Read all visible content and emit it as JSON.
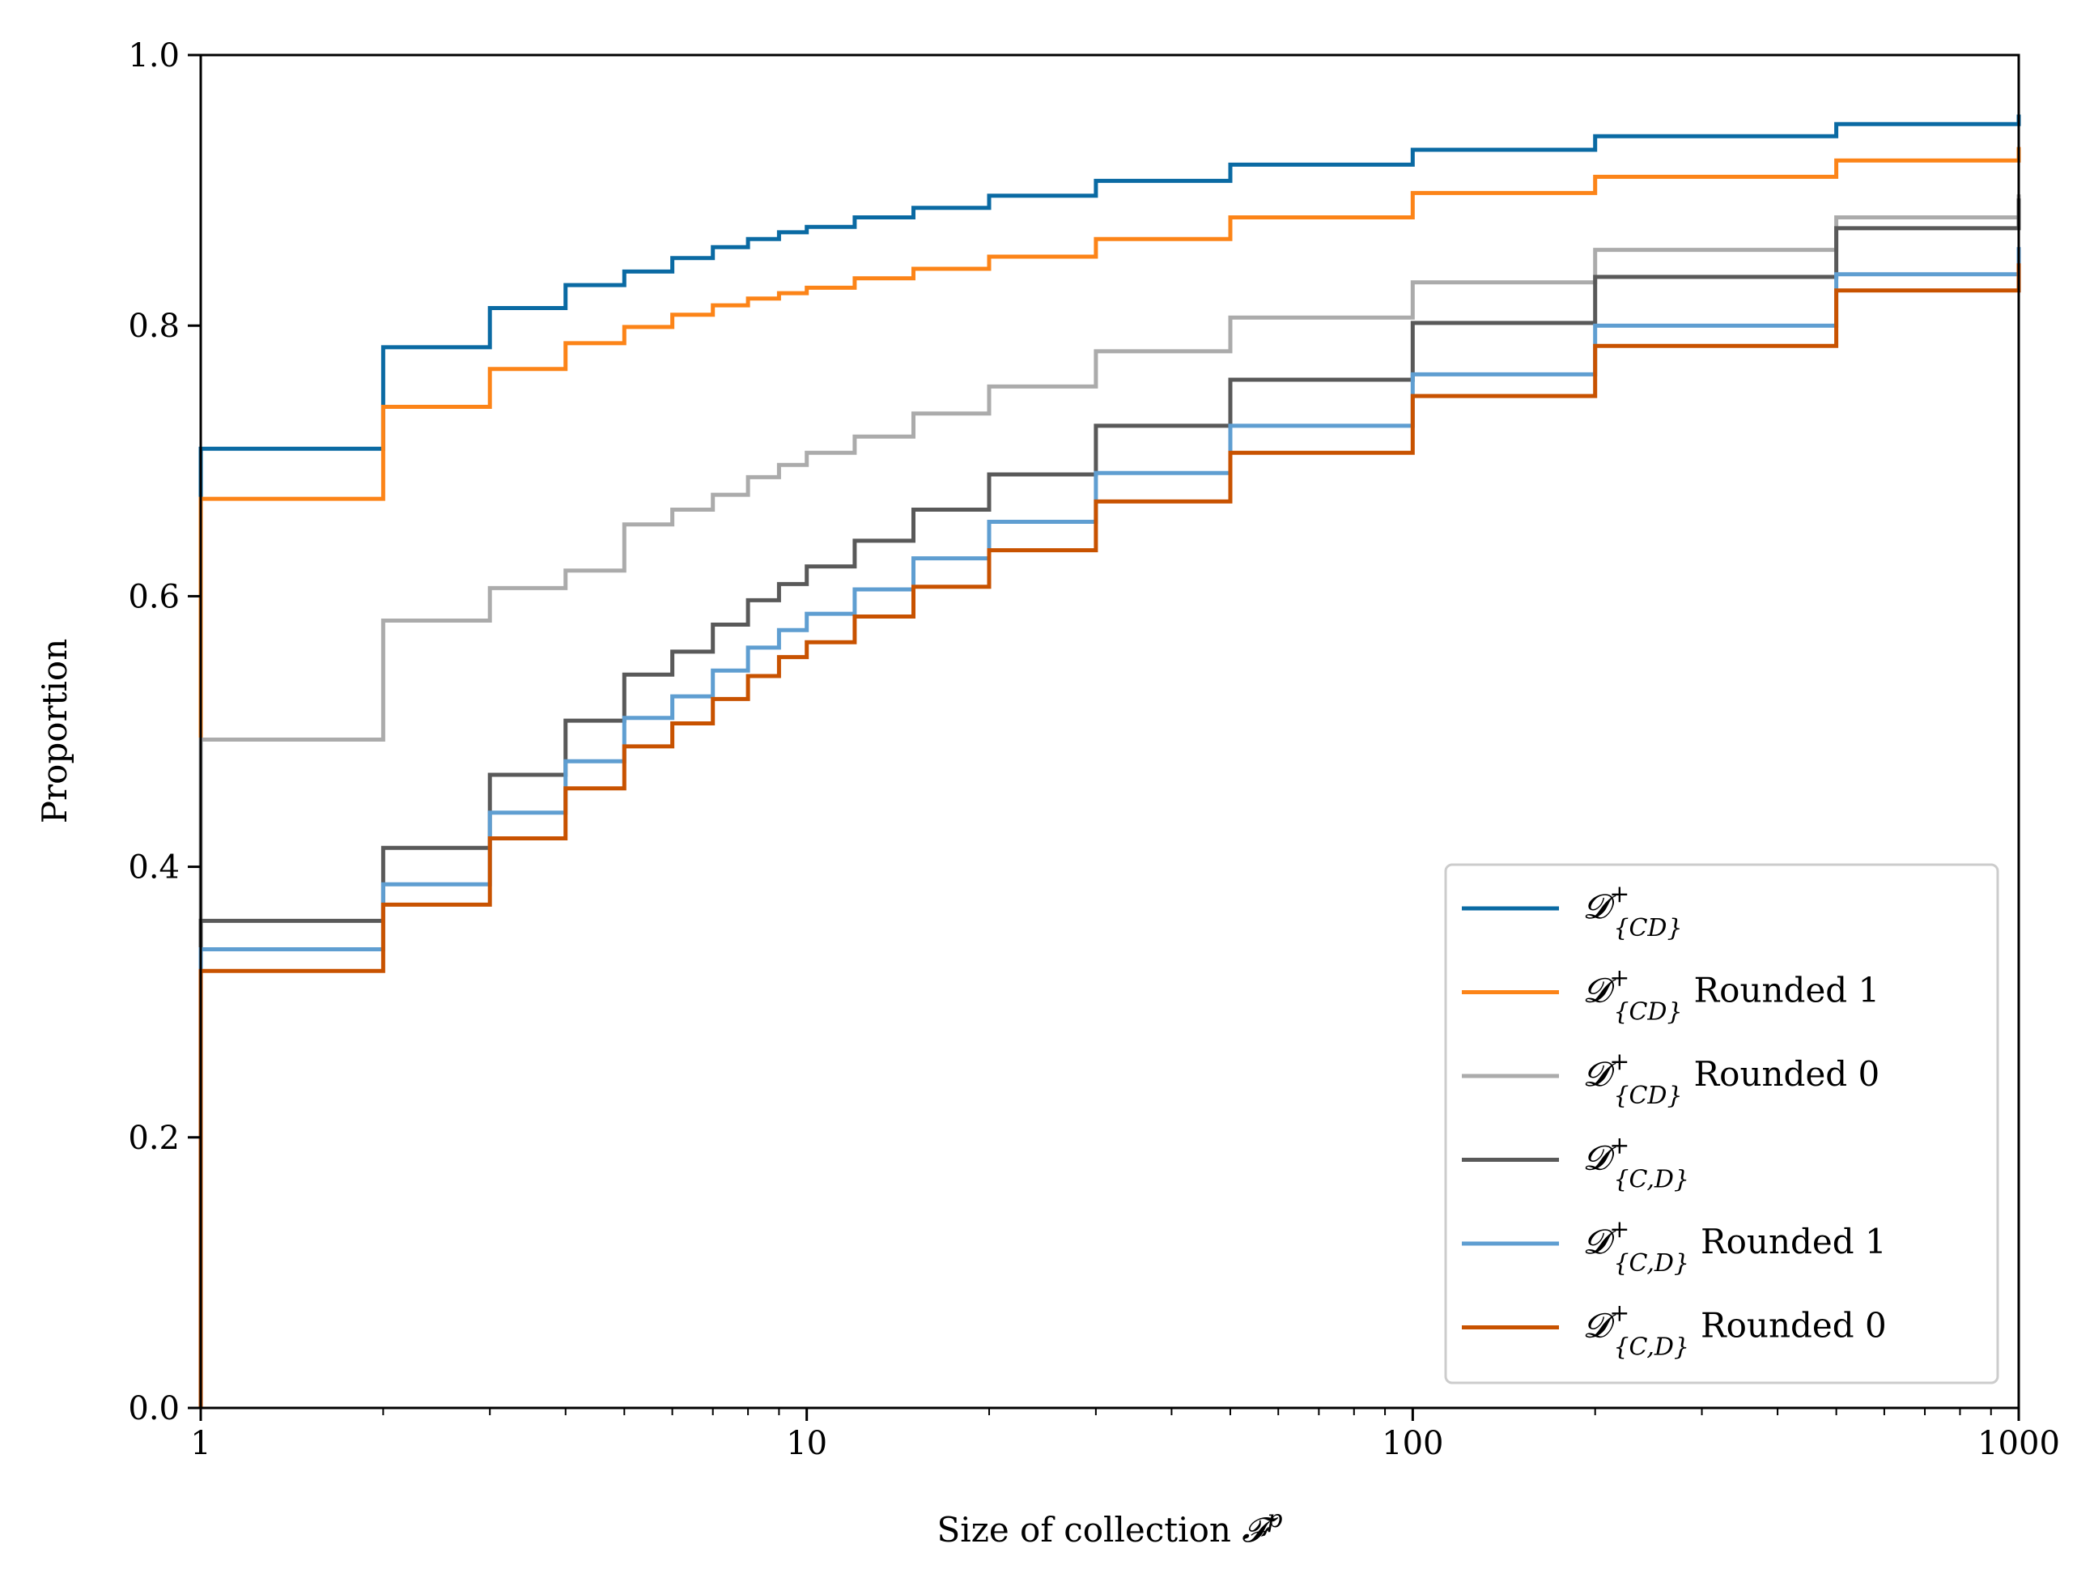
{
  "chart_data": {
    "type": "line",
    "drawstyle": "steps-post",
    "xscale": "log",
    "xlim": [
      1,
      1000
    ],
    "ylim": [
      0.0,
      1.0
    ],
    "xlabel": {
      "pre": "Size of collection ",
      "sym": "𝓕",
      "sup": "p"
    },
    "ylabel": "Proportion",
    "grid": false,
    "legend_position": "lower right",
    "xticks": [
      {
        "value": 1,
        "label": "1"
      },
      {
        "value": 10,
        "label": "10"
      },
      {
        "value": 100,
        "label": "100"
      },
      {
        "value": 1000,
        "label": "1000"
      }
    ],
    "yticks": [
      {
        "value": 0.0,
        "label": "0.0"
      },
      {
        "value": 0.2,
        "label": "0.2"
      },
      {
        "value": 0.4,
        "label": "0.4"
      },
      {
        "value": 0.6,
        "label": "0.6"
      },
      {
        "value": 0.8,
        "label": "0.8"
      },
      {
        "value": 1.0,
        "label": "1.0"
      }
    ],
    "series": [
      {
        "name": "𝓓⁺{CD}",
        "legend": {
          "base": "𝓓",
          "sup": "+",
          "sub": "{CD}",
          "suffix": ""
        },
        "color": "#0a6aa3",
        "x": [
          1,
          2,
          3,
          4,
          5,
          6,
          7,
          8,
          9,
          10,
          12,
          15,
          20,
          30,
          50,
          100,
          200,
          500,
          1000
        ],
        "y": [
          0.709,
          0.784,
          0.813,
          0.83,
          0.84,
          0.85,
          0.858,
          0.864,
          0.869,
          0.873,
          0.88,
          0.887,
          0.896,
          0.907,
          0.919,
          0.93,
          0.94,
          0.949,
          0.956
        ]
      },
      {
        "name": "𝓓⁺{CD} Rounded 1",
        "legend": {
          "base": "𝓓",
          "sup": "+",
          "sub": "{CD}",
          "suffix": "Rounded 1"
        },
        "color": "#fc8418",
        "x": [
          1,
          2,
          3,
          4,
          5,
          6,
          7,
          8,
          9,
          10,
          12,
          15,
          20,
          30,
          50,
          100,
          200,
          500,
          1000
        ],
        "y": [
          0.672,
          0.74,
          0.768,
          0.787,
          0.799,
          0.808,
          0.815,
          0.82,
          0.824,
          0.828,
          0.835,
          0.842,
          0.851,
          0.864,
          0.88,
          0.898,
          0.91,
          0.922,
          0.932
        ]
      },
      {
        "name": "𝓓⁺{CD} Rounded 0",
        "legend": {
          "base": "𝓓",
          "sup": "+",
          "sub": "{CD}",
          "suffix": "Rounded 0"
        },
        "color": "#ababab",
        "x": [
          1,
          2,
          3,
          4,
          5,
          6,
          7,
          8,
          9,
          10,
          12,
          15,
          20,
          30,
          50,
          100,
          200,
          500,
          1000
        ],
        "y": [
          0.494,
          0.582,
          0.606,
          0.619,
          0.653,
          0.664,
          0.675,
          0.688,
          0.697,
          0.706,
          0.718,
          0.735,
          0.755,
          0.781,
          0.806,
          0.832,
          0.856,
          0.88,
          0.897
        ]
      },
      {
        "name": "𝓓⁺{C,D}",
        "legend": {
          "base": "𝓓",
          "sup": "+",
          "sub": "{C,D}",
          "suffix": ""
        },
        "color": "#595959",
        "x": [
          1,
          2,
          3,
          4,
          5,
          6,
          7,
          8,
          9,
          10,
          12,
          15,
          20,
          30,
          50,
          100,
          200,
          500,
          1000
        ],
        "y": [
          0.36,
          0.414,
          0.468,
          0.508,
          0.542,
          0.559,
          0.579,
          0.597,
          0.609,
          0.622,
          0.641,
          0.664,
          0.69,
          0.726,
          0.76,
          0.802,
          0.836,
          0.872,
          0.894
        ]
      },
      {
        "name": "𝓓⁺{C,D} Rounded 1",
        "legend": {
          "base": "𝓓",
          "sup": "+",
          "sub": "{C,D}",
          "suffix": "Rounded 1"
        },
        "color": "#5f9ed1",
        "x": [
          1,
          2,
          3,
          4,
          5,
          6,
          7,
          8,
          9,
          10,
          12,
          15,
          20,
          30,
          50,
          100,
          200,
          500,
          1000
        ],
        "y": [
          0.339,
          0.387,
          0.44,
          0.478,
          0.51,
          0.526,
          0.545,
          0.562,
          0.575,
          0.587,
          0.605,
          0.628,
          0.655,
          0.691,
          0.726,
          0.764,
          0.8,
          0.838,
          0.858
        ]
      },
      {
        "name": "𝓓⁺{C,D} Rounded 0",
        "legend": {
          "base": "𝓓",
          "sup": "+",
          "sub": "{C,D}",
          "suffix": "Rounded 0"
        },
        "color": "#c85200",
        "x": [
          1,
          2,
          3,
          4,
          5,
          6,
          7,
          8,
          9,
          10,
          12,
          15,
          20,
          30,
          50,
          100,
          200,
          500,
          1000
        ],
        "y": [
          0.323,
          0.372,
          0.421,
          0.458,
          0.489,
          0.506,
          0.524,
          0.541,
          0.555,
          0.566,
          0.585,
          0.607,
          0.634,
          0.67,
          0.706,
          0.748,
          0.785,
          0.826,
          0.846
        ]
      }
    ]
  }
}
